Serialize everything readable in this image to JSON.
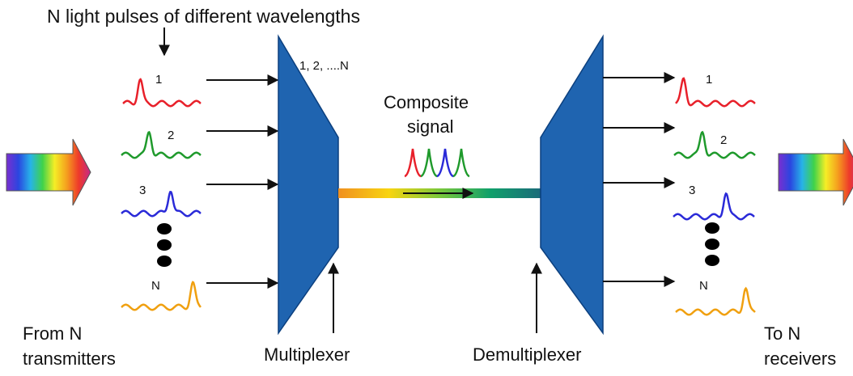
{
  "title": "N light pulses of different wavelengths",
  "mux_channel_label": "1, 2, ....N",
  "composite": {
    "line1": "Composite",
    "line2": "signal"
  },
  "left_caption": {
    "line1": "From N",
    "line2": "transmitters"
  },
  "right_caption": {
    "line1": "To N",
    "line2": "receivers"
  },
  "multiplexer_label": "Multiplexer",
  "demultiplexer_label": "Demultiplexer",
  "input_channels": [
    {
      "label": "1",
      "color": "#e8202a"
    },
    {
      "label": "2",
      "color": "#1f9a2c"
    },
    {
      "label": "3",
      "color": "#2a2ad8"
    },
    {
      "label": "N",
      "color": "#f0a010"
    }
  ],
  "output_channels": [
    {
      "label": "1",
      "color": "#e8202a"
    },
    {
      "label": "2",
      "color": "#1f9a2c"
    },
    {
      "label": "3",
      "color": "#2a2ad8"
    },
    {
      "label": "N",
      "color": "#f0a010"
    }
  ],
  "colors": {
    "device_fill": "#1f64b0",
    "device_stroke": "#0b3f7e",
    "arrow": "#111111",
    "rainbow": [
      "#7a2fd0",
      "#2a46e0",
      "#27b3e8",
      "#3fd24a",
      "#f5ee26",
      "#f5a01e",
      "#ee3a2a",
      "#c42a8a"
    ],
    "fiber": [
      "#f09020",
      "#f8d410",
      "#7ac83a",
      "#10a06a",
      "#1b6b7a"
    ]
  }
}
